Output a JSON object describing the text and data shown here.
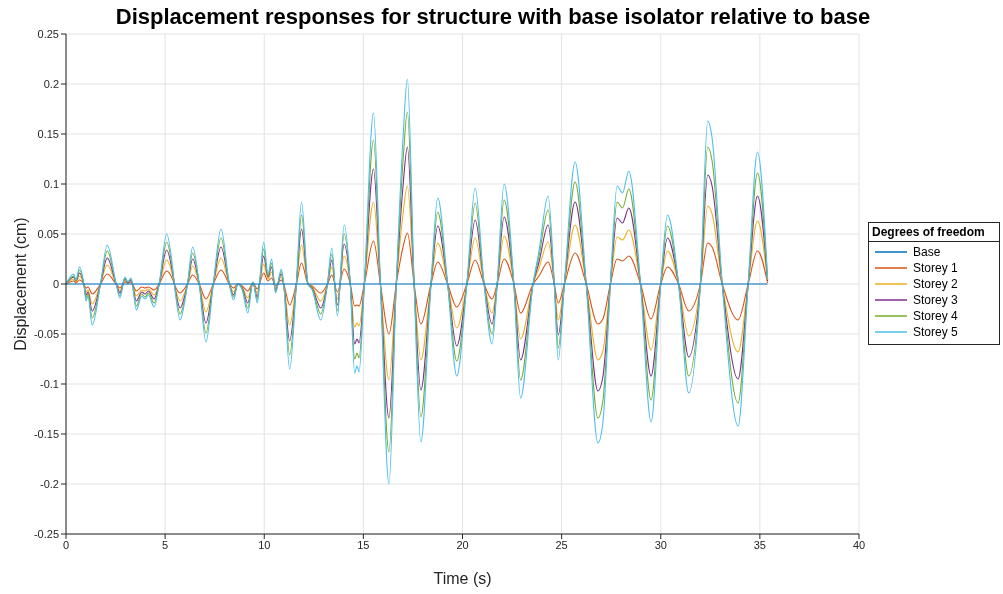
{
  "chart_data": {
    "type": "line",
    "title": "Displacement responses for structure with base isolator relative to base",
    "xlabel": "Time (s)",
    "ylabel": "Displacement (cm)",
    "legend_title": "Degrees of freedom",
    "legend": "right",
    "grid": true,
    "xlim": [
      0,
      40
    ],
    "xticks": [
      0,
      5,
      10,
      15,
      20,
      25,
      30,
      35,
      40
    ],
    "ylim": [
      -0.25,
      0.25
    ],
    "yticks": [
      -0.25,
      -0.2,
      -0.15,
      -0.1,
      -0.05,
      0,
      0.05,
      0.1,
      0.15,
      0.2,
      0.25
    ],
    "x": [
      0,
      0.39,
      0.5,
      0.68,
      0.9,
      1.01,
      1.11,
      1.32,
      1.74,
      2.08,
      2.53,
      2.72,
      2.97,
      3.12,
      3.28,
      3.55,
      3.82,
      3.99,
      4.16,
      4.44,
      4.7,
      5.08,
      5.37,
      5.5,
      5.76,
      5.96,
      6.13,
      6.39,
      6.72,
      7.06,
      7.43,
      7.82,
      8.24,
      8.45,
      8.67,
      8.89,
      9.17,
      9.43,
      9.65,
      9.76,
      9.97,
      10.19,
      10.37,
      10.57,
      10.86,
      10.98,
      11.28,
      11.62,
      11.88,
      12.21,
      12.42,
      12.85,
      13.19,
      13.41,
      13.69,
      14.03,
      14.34,
      14.56,
      14.68,
      14.78,
      15.05,
      15.51,
      15.86,
      16.29,
      16.66,
      17.0,
      17.22,
      17.56,
      17.9,
      18.41,
      18.75,
      19.25,
      19.71,
      20.22,
      20.64,
      21.07,
      21.49,
      21.75,
      22.1,
      22.59,
      22.93,
      23.56,
      23.86,
      24.32,
      24.63,
      24.83,
      25.14,
      25.68,
      26.24,
      26.83,
      27.08,
      27.46,
      27.8,
      28.07,
      28.39,
      28.98,
      29.51,
      30.0,
      30.34,
      30.9,
      31.41,
      32.0,
      32.37,
      32.59,
      33.1,
      33.9,
      34.41,
      34.88,
      35.39
    ],
    "series": [
      {
        "name": "Storey 1",
        "color": "#d95319",
        "values": [
          0,
          0.003,
          0.001,
          0.004,
          0,
          -0.004,
          -0.003,
          -0.01,
          0,
          0.01,
          0,
          -0.004,
          0.002,
          0.001,
          0.002,
          -0.007,
          -0.003,
          -0.004,
          -0.003,
          -0.006,
          0,
          0.013,
          0.005,
          -0.002,
          -0.009,
          -0.005,
          0,
          0.009,
          0,
          -0.015,
          0,
          0.014,
          0,
          -0.004,
          0,
          -0.002,
          -0.007,
          0.001,
          -0.005,
          0,
          0.011,
          0.003,
          0.006,
          -0.002,
          0.004,
          0,
          -0.021,
          0,
          0.021,
          0,
          -0.002,
          -0.009,
          0,
          0.009,
          -0.008,
          0.015,
          0,
          -0.022,
          -0.021,
          -0.022,
          0,
          0.043,
          0,
          -0.05,
          0,
          0.037,
          0.051,
          0,
          -0.04,
          0,
          0.022,
          0,
          -0.023,
          0,
          0.024,
          0.001,
          -0.015,
          0,
          0.025,
          0,
          -0.029,
          0,
          0.008,
          0.022,
          0,
          -0.019,
          0,
          0.031,
          0,
          -0.04,
          -0.035,
          0,
          0.025,
          0.023,
          0.028,
          0,
          -0.035,
          0,
          0.017,
          0,
          -0.027,
          0,
          0.041,
          0.037,
          0,
          -0.036,
          0,
          0.033,
          0.001
        ]
      },
      {
        "name": "Storey 2",
        "color": "#edb120",
        "values": [
          0,
          0.005,
          0.002,
          0.008,
          0,
          -0.008,
          -0.006,
          -0.02,
          0,
          0.019,
          0,
          -0.007,
          0.003,
          0.001,
          0.003,
          -0.012,
          -0.006,
          -0.007,
          -0.005,
          -0.011,
          0,
          0.024,
          0.009,
          -0.003,
          -0.017,
          -0.01,
          0,
          0.018,
          0,
          -0.028,
          0,
          0.026,
          0,
          -0.008,
          0,
          -0.003,
          -0.014,
          0.001,
          -0.009,
          0,
          0.02,
          0.005,
          0.012,
          -0.004,
          0.007,
          0,
          -0.041,
          0,
          0.039,
          0,
          -0.003,
          -0.017,
          0,
          0.017,
          -0.015,
          0.028,
          0,
          -0.043,
          -0.039,
          -0.042,
          0,
          0.082,
          0,
          -0.096,
          0,
          0.07,
          0.098,
          0,
          -0.076,
          0,
          0.041,
          0,
          -0.044,
          0,
          0.046,
          0.002,
          -0.029,
          0,
          0.048,
          0,
          -0.055,
          0,
          0.016,
          0.042,
          0,
          -0.036,
          0,
          0.059,
          0,
          -0.076,
          -0.067,
          0,
          0.047,
          0.044,
          0.054,
          0,
          -0.066,
          0,
          0.033,
          0,
          -0.052,
          0,
          0.078,
          0.07,
          0,
          -0.068,
          0,
          0.063,
          0.002
        ]
      },
      {
        "name": "Storey 3",
        "color": "#7e2f8e",
        "values": [
          0,
          0.007,
          0.003,
          0.011,
          0,
          -0.011,
          -0.008,
          -0.027,
          0,
          0.026,
          0,
          -0.009,
          0.005,
          0.001,
          0.004,
          -0.017,
          -0.008,
          -0.01,
          -0.007,
          -0.015,
          0,
          0.034,
          0.012,
          -0.004,
          -0.024,
          -0.014,
          0,
          0.025,
          0,
          -0.039,
          0,
          0.037,
          0,
          -0.011,
          0,
          -0.004,
          -0.019,
          0.001,
          -0.013,
          0,
          0.028,
          0.007,
          0.017,
          -0.006,
          0.01,
          0,
          -0.057,
          0,
          0.055,
          0,
          -0.004,
          -0.024,
          0,
          0.024,
          -0.021,
          0.04,
          0,
          -0.06,
          -0.055,
          -0.059,
          0,
          0.115,
          0,
          -0.134,
          0,
          0.098,
          0.137,
          0,
          -0.106,
          0,
          0.058,
          0,
          -0.062,
          0,
          0.064,
          0.003,
          -0.04,
          0,
          0.067,
          0,
          -0.076,
          0,
          0.022,
          0.059,
          0,
          -0.051,
          0,
          0.082,
          0,
          -0.107,
          -0.093,
          0,
          0.066,
          0.061,
          0.076,
          0,
          -0.092,
          0,
          0.046,
          0,
          -0.073,
          0,
          0.109,
          0.098,
          0,
          -0.095,
          0,
          0.088,
          0.003
        ]
      },
      {
        "name": "Storey 4",
        "color": "#77ac30",
        "values": [
          0,
          0.008,
          0.003,
          0.014,
          0,
          -0.014,
          -0.01,
          -0.034,
          0,
          0.033,
          0,
          -0.012,
          0.006,
          0.002,
          0.005,
          -0.022,
          -0.01,
          -0.013,
          -0.009,
          -0.019,
          0,
          0.042,
          0.015,
          -0.005,
          -0.03,
          -0.018,
          0,
          0.031,
          0,
          -0.049,
          0,
          0.046,
          0,
          -0.013,
          0,
          -0.005,
          -0.024,
          0.002,
          -0.016,
          0,
          0.035,
          0.008,
          0.021,
          -0.008,
          0.013,
          0,
          -0.071,
          0,
          0.069,
          0,
          -0.005,
          -0.03,
          0,
          0.03,
          -0.027,
          0.05,
          0,
          -0.075,
          -0.069,
          -0.074,
          0,
          0.144,
          0,
          -0.168,
          0,
          0.123,
          0.172,
          0,
          -0.133,
          0,
          0.072,
          0,
          -0.077,
          0,
          0.081,
          0.003,
          -0.05,
          0,
          0.084,
          0,
          -0.096,
          0,
          0.028,
          0.074,
          0,
          -0.064,
          0,
          0.102,
          0,
          -0.134,
          -0.117,
          0,
          0.082,
          0.076,
          0.095,
          0,
          -0.116,
          0,
          0.058,
          0,
          -0.092,
          0,
          0.137,
          0.123,
          0,
          -0.119,
          0,
          0.111,
          0.004
        ]
      },
      {
        "name": "Storey 5",
        "color": "#4dbeee",
        "values": [
          0,
          0.01,
          0.004,
          0.017,
          0,
          -0.017,
          -0.012,
          -0.041,
          0,
          0.039,
          0,
          -0.014,
          0.007,
          0.002,
          0.006,
          -0.026,
          -0.012,
          -0.015,
          -0.011,
          -0.023,
          0,
          0.05,
          0.018,
          -0.006,
          -0.036,
          -0.021,
          0,
          0.037,
          0,
          -0.058,
          0,
          0.055,
          0,
          -0.016,
          0,
          -0.006,
          -0.029,
          0.002,
          -0.019,
          0,
          0.042,
          0.01,
          0.025,
          -0.009,
          0.015,
          0,
          -0.085,
          0,
          0.082,
          0,
          -0.006,
          -0.036,
          0,
          0.036,
          -0.032,
          0.059,
          0,
          -0.089,
          -0.082,
          -0.088,
          0,
          0.171,
          0,
          -0.2,
          0,
          0.146,
          0.205,
          0,
          -0.158,
          0,
          0.086,
          0,
          -0.092,
          0,
          0.096,
          0.004,
          -0.06,
          0,
          0.1,
          0,
          -0.114,
          0,
          0.033,
          0.088,
          0,
          -0.076,
          0,
          0.122,
          0,
          -0.159,
          -0.139,
          0,
          0.098,
          0.091,
          0.113,
          0,
          -0.138,
          0,
          0.069,
          0,
          -0.109,
          0,
          0.163,
          0.146,
          0,
          -0.142,
          0,
          0.132,
          0.005
        ]
      },
      {
        "name": "Base",
        "color": "#0072bd",
        "x": [
          0,
          35.39
        ],
        "values": [
          0,
          0
        ]
      }
    ]
  }
}
